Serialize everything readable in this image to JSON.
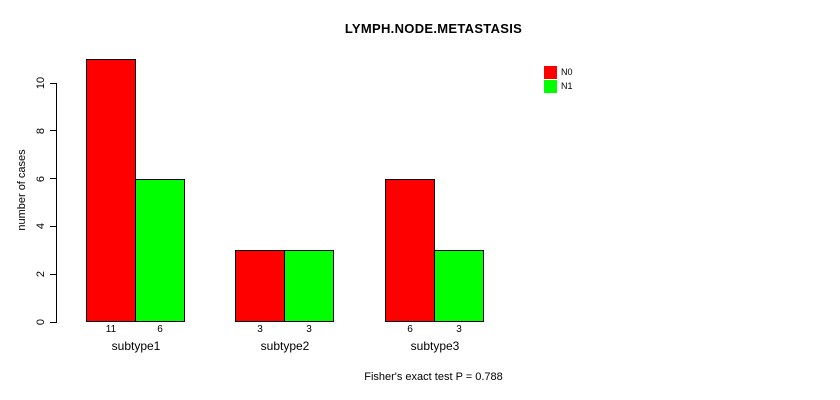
{
  "chart_data": {
    "type": "bar",
    "title": "LYMPH.NODE.METASTASIS",
    "ylabel": "number of cases",
    "xlabel": "",
    "categories": [
      "subtype1",
      "subtype2",
      "subtype3"
    ],
    "series": [
      {
        "name": "N0",
        "color": "#ff0000",
        "values": [
          11,
          3,
          6
        ]
      },
      {
        "name": "N1",
        "color": "#00ff00",
        "values": [
          6,
          3,
          3
        ]
      }
    ],
    "bar_value_labels": [
      [
        "11",
        "6"
      ],
      [
        "3",
        "3"
      ],
      [
        "6",
        "3"
      ]
    ],
    "ylim": [
      0,
      10
    ],
    "yticks": [
      0,
      2,
      4,
      6,
      8,
      10
    ],
    "grid": false,
    "legend_position": "top-right",
    "annotation": "Fisher's exact test P = 0.788"
  }
}
